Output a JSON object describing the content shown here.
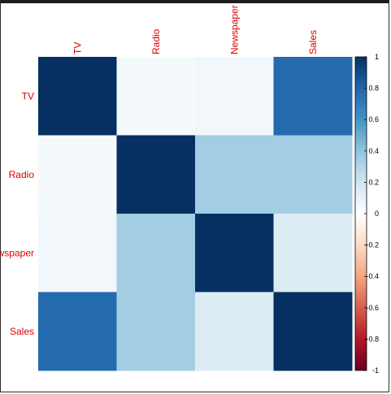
{
  "chart_data": {
    "type": "heatmap",
    "variables": [
      "TV",
      "Radio",
      "Newspaper",
      "Sales"
    ],
    "matrix": [
      [
        1.0,
        0.05,
        0.06,
        0.78
      ],
      [
        0.05,
        1.0,
        0.35,
        0.35
      ],
      [
        0.06,
        0.35,
        1.0,
        0.15
      ],
      [
        0.78,
        0.35,
        0.15,
        1.0
      ]
    ],
    "colorbar": {
      "range": [
        -1,
        1
      ],
      "ticks": [
        "1",
        "0.8",
        "0.6",
        "0.4",
        "0.2",
        "0",
        "-0.2",
        "-0.4",
        "-0.6",
        "-0.8",
        "-1"
      ],
      "colors": [
        "#67001F",
        "#B2182B",
        "#D6604D",
        "#F4A582",
        "#FDDBC7",
        "#FFFFFF",
        "#D1E5F0",
        "#92C5DE",
        "#4393C3",
        "#2166AC",
        "#053061"
      ]
    },
    "label_color": "#E00000",
    "grid": false,
    "legend": "right"
  }
}
